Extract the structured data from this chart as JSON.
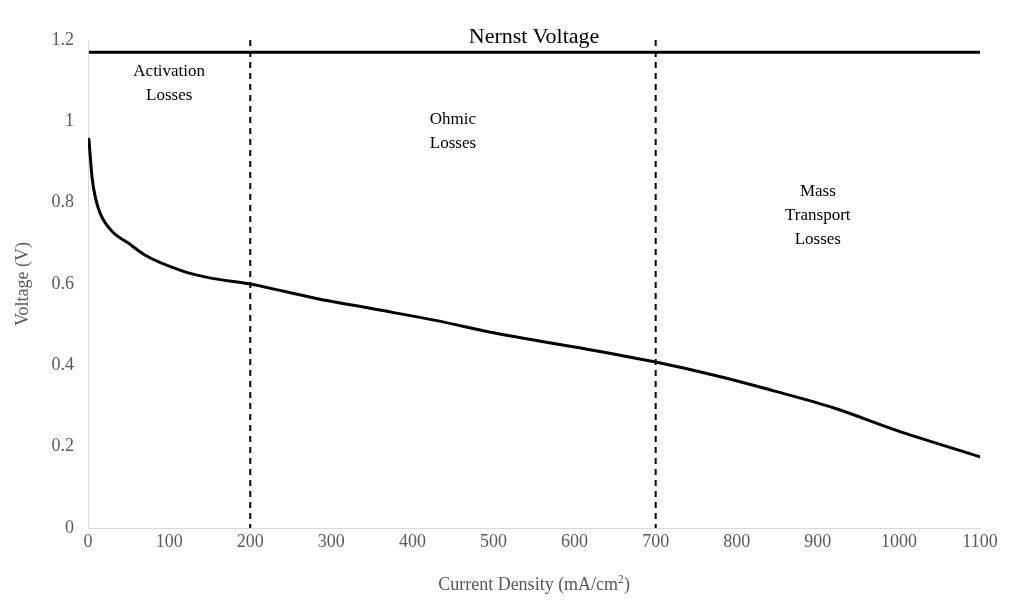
{
  "chart_data": {
    "type": "line",
    "xlabel": "Current Density (mA/cm$^{2}$)",
    "ylabel": "Voltage (V)",
    "series": [
      {
        "color": "#000000",
        "x": [
          1,
          5,
          12,
          28,
          50,
          71,
          115,
          150,
          200,
          280,
          351,
          430,
          500,
          600,
          700,
          780,
          848,
          920,
          997,
          1100
        ],
        "values": [
          0.956,
          0.86,
          0.79,
          0.733,
          0.7,
          0.67,
          0.633,
          0.615,
          0.6,
          0.565,
          0.539,
          0.51,
          0.48,
          0.445,
          0.408,
          0.372,
          0.336,
          0.295,
          0.24,
          0.175
        ]
      }
    ],
    "xlim": [
      0,
      1100
    ],
    "xticks": [
      0,
      100,
      200,
      300,
      400,
      500,
      600,
      700,
      800,
      900,
      1000,
      1100
    ],
    "ylim": [
      0,
      1.2
    ],
    "yticks": [
      0,
      0.2,
      0.4,
      0.6,
      0.8,
      1,
      1.2
    ],
    "grid": false,
    "legend": false,
    "marker": "none",
    "line_style": "solid",
    "ref_lines": [
      {
        "axis": "y",
        "value": 1.17,
        "label": "Nernst Voltage",
        "color": "#000000",
        "line_style": "solid"
      },
      {
        "axis": "x",
        "value": 200,
        "color": "#000000",
        "line_style": "dashed"
      },
      {
        "axis": "x",
        "value": 700,
        "color": "#000000",
        "line_style": "dashed"
      }
    ],
    "annotations": [
      "Activation\nLosses",
      "Ohmic\nLosses",
      "Mass\nTransport\nLosses"
    ]
  }
}
